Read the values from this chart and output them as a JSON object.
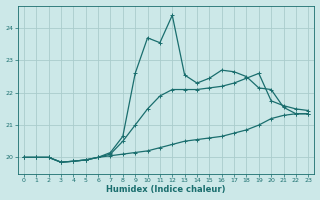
{
  "background_color": "#cce8e8",
  "grid_color": "#aacccc",
  "line_color": "#1a6e6e",
  "xlabel": "Humidex (Indice chaleur)",
  "xlim": [
    -0.5,
    23.5
  ],
  "ylim": [
    19.5,
    24.7
  ],
  "yticks": [
    20,
    21,
    22,
    23,
    24
  ],
  "xticks": [
    0,
    1,
    2,
    3,
    4,
    5,
    6,
    7,
    8,
    9,
    10,
    11,
    12,
    13,
    14,
    15,
    16,
    17,
    18,
    19,
    20,
    21,
    22,
    23
  ],
  "series1_x": [
    0,
    1,
    2,
    3,
    4,
    5,
    6,
    7,
    8,
    9,
    10,
    11,
    12,
    13,
    14,
    15,
    16,
    17,
    18,
    19,
    20,
    21,
    22,
    23
  ],
  "series1_y": [
    20.0,
    20.0,
    20.0,
    19.85,
    19.88,
    19.92,
    20.0,
    20.05,
    20.1,
    20.15,
    20.2,
    20.3,
    20.4,
    20.5,
    20.55,
    20.6,
    20.65,
    20.75,
    20.85,
    21.0,
    21.2,
    21.3,
    21.35,
    21.35
  ],
  "series2_x": [
    0,
    1,
    2,
    3,
    4,
    5,
    6,
    7,
    8,
    9,
    10,
    11,
    12,
    13,
    14,
    15,
    16,
    17,
    18,
    19,
    20,
    21,
    22,
    23
  ],
  "series2_y": [
    20.0,
    20.0,
    20.0,
    19.85,
    19.88,
    19.92,
    20.0,
    20.1,
    20.5,
    21.0,
    21.5,
    21.9,
    22.1,
    22.1,
    22.1,
    22.15,
    22.2,
    22.3,
    22.45,
    22.6,
    21.75,
    21.6,
    21.5,
    21.45
  ],
  "series3_x": [
    0,
    1,
    2,
    3,
    4,
    5,
    6,
    7,
    8,
    9,
    10,
    11,
    12,
    13,
    14,
    15,
    16,
    17,
    18,
    19,
    20,
    21,
    22,
    23
  ],
  "series3_y": [
    20.0,
    20.0,
    20.0,
    19.85,
    19.88,
    19.92,
    20.0,
    20.15,
    20.65,
    22.6,
    23.7,
    23.55,
    24.4,
    22.55,
    22.3,
    22.45,
    22.7,
    22.65,
    22.5,
    22.15,
    22.1,
    21.55,
    21.35,
    21.35
  ],
  "marker_size": 2.5,
  "line_width": 0.9
}
